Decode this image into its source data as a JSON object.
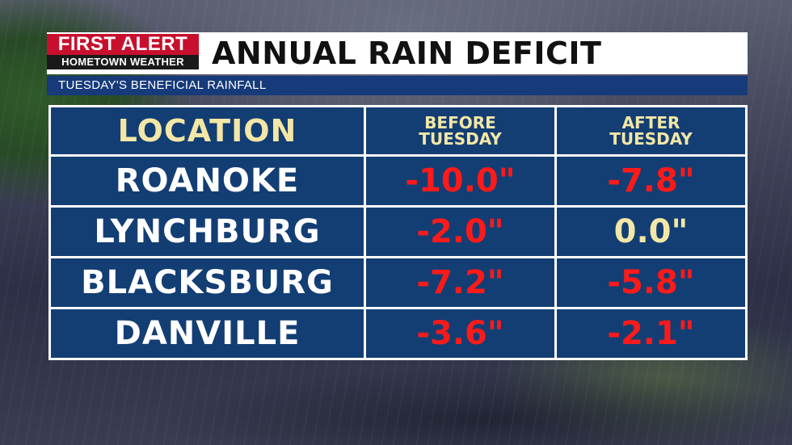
{
  "logo": {
    "line1": "FIRST ALERT",
    "line2": "HOMETOWN WEATHER"
  },
  "title": "ANNUAL RAIN DEFICIT",
  "subtitle": "TUESDAY'S BENEFICIAL RAINFALL",
  "table": {
    "headers": {
      "location": "LOCATION",
      "before_line1": "BEFORE",
      "before_line2": "TUESDAY",
      "after_line1": "AFTER",
      "after_line2": "TUESDAY"
    },
    "rows": [
      {
        "location": "ROANOKE",
        "before": "-10.0\"",
        "after": "-7.8\""
      },
      {
        "location": "LYNCHBURG",
        "before": "-2.0\"",
        "after": "0.0\""
      },
      {
        "location": "BLACKSBURG",
        "before": "-7.2\"",
        "after": "-5.8\""
      },
      {
        "location": "DANVILLE",
        "before": "-3.6\"",
        "after": "-2.1\""
      }
    ]
  },
  "colors": {
    "brand_red": "#c8102e",
    "table_blue": "#133e74",
    "subtitle_blue": "#163a7a",
    "deficit_red": "#ff1a1a",
    "header_cream": "#f3e7a6"
  }
}
